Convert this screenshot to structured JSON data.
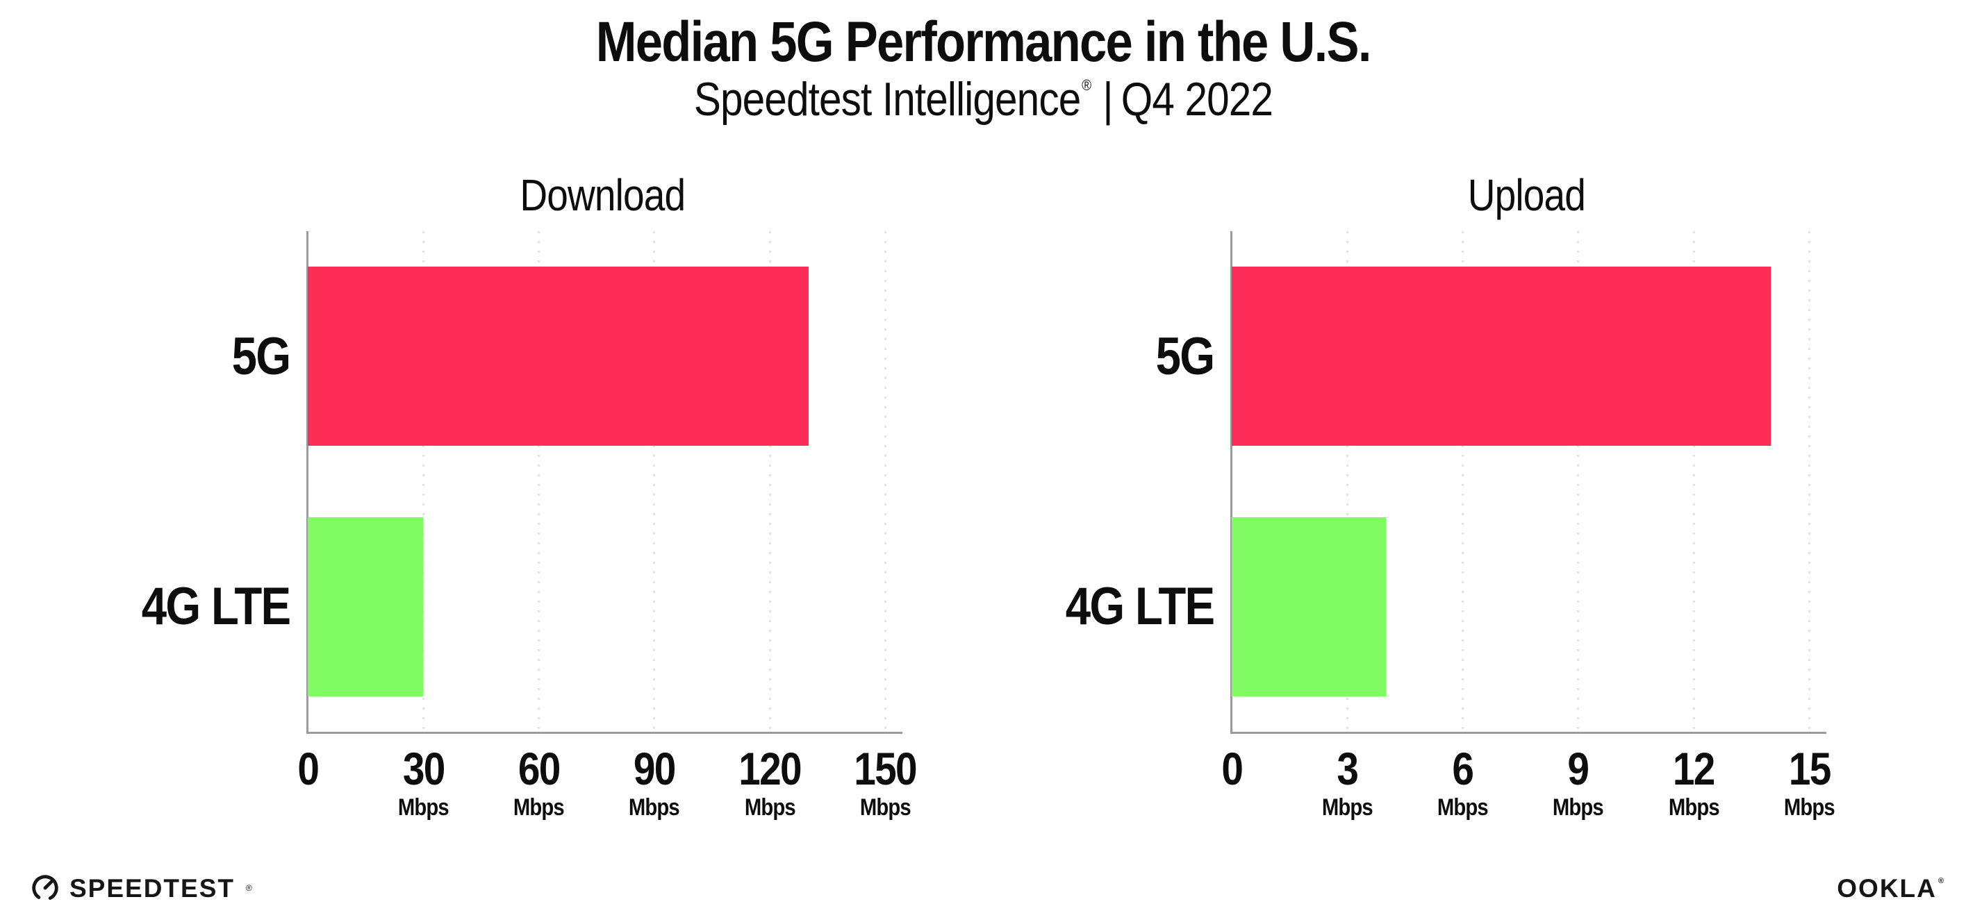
{
  "header": {
    "title": "Median 5G Performance in the U.S.",
    "subtitle_brand": "Speedtest Intelligence",
    "subtitle_reg": "®",
    "subtitle_separator": "|",
    "subtitle_period": "Q4 2022"
  },
  "colors": {
    "bar_5g": "#fd2d57",
    "bar_4g_lte": "#80fb63",
    "axis_line": "#9b9b9b",
    "gridline": "#e2e2ec",
    "text": "#0d0d0d"
  },
  "chart_data": [
    {
      "type": "bar",
      "orientation": "horizontal",
      "title": "Download",
      "categories": [
        "5G",
        "4G LTE"
      ],
      "values": [
        130,
        30
      ],
      "unit": "Mbps",
      "xticks": [
        0,
        30,
        60,
        90,
        120,
        150
      ],
      "xlim": [
        0,
        153
      ],
      "xlabel": "",
      "ylabel": "",
      "grid": "vertical-dotted",
      "legend": "none",
      "bar_colors": [
        "#fd2d57",
        "#80fb63"
      ]
    },
    {
      "type": "bar",
      "orientation": "horizontal",
      "title": "Upload",
      "categories": [
        "5G",
        "4G LTE"
      ],
      "values": [
        14,
        4
      ],
      "unit": "Mbps",
      "xticks": [
        0,
        3,
        6,
        9,
        12,
        15
      ],
      "xlim": [
        0,
        15.3
      ],
      "xlabel": "",
      "ylabel": "",
      "grid": "vertical-dotted",
      "legend": "none",
      "bar_colors": [
        "#fd2d57",
        "#80fb63"
      ]
    }
  ],
  "footer": {
    "speedtest_label": "SPEEDTEST",
    "speedtest_reg": "®",
    "ookla_label": "OOKLA",
    "ookla_reg": "®"
  }
}
